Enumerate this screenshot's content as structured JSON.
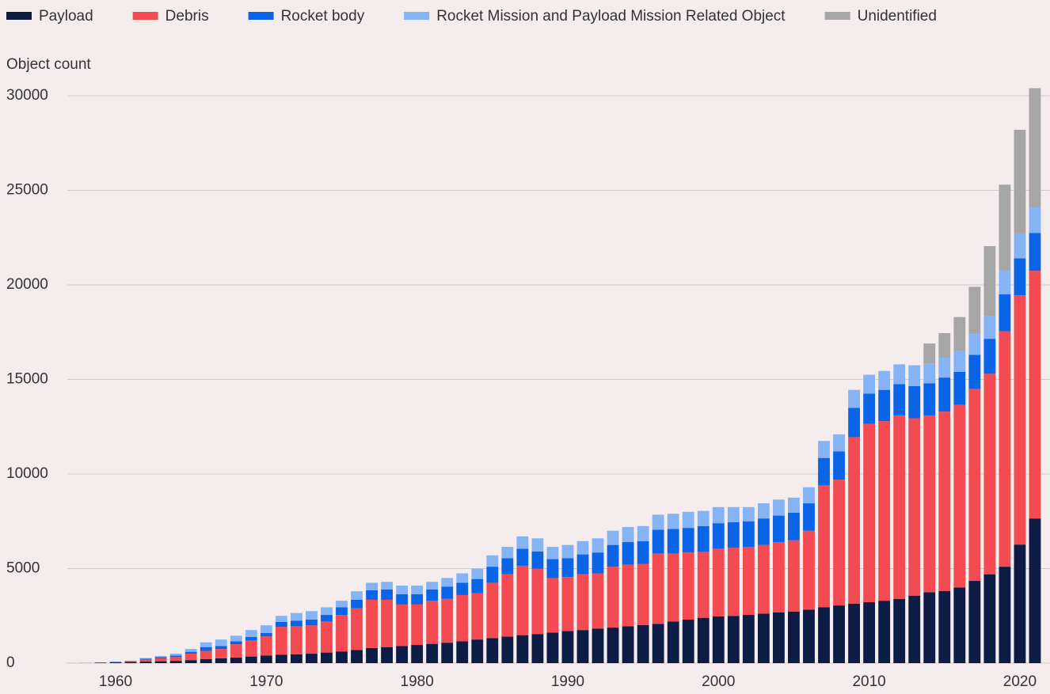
{
  "chart_data": {
    "type": "stacked_bar",
    "y_label": "Object count",
    "x": [
      1957,
      1958,
      1959,
      1960,
      1961,
      1962,
      1963,
      1964,
      1965,
      1966,
      1967,
      1968,
      1969,
      1970,
      1971,
      1972,
      1973,
      1974,
      1975,
      1976,
      1977,
      1978,
      1979,
      1980,
      1981,
      1982,
      1983,
      1984,
      1985,
      1986,
      1987,
      1988,
      1989,
      1990,
      1991,
      1992,
      1993,
      1994,
      1995,
      1996,
      1997,
      1998,
      1999,
      2000,
      2001,
      2002,
      2003,
      2004,
      2005,
      2006,
      2007,
      2008,
      2009,
      2010,
      2011,
      2012,
      2013,
      2014,
      2015,
      2016,
      2017,
      2018,
      2019,
      2020,
      2021
    ],
    "xlim": [
      1956.5,
      2022
    ],
    "xticks": [
      1960,
      1970,
      1980,
      1990,
      2000,
      2010,
      2020
    ],
    "ylim": [
      0,
      30000
    ],
    "yticks": [
      0,
      5000,
      10000,
      15000,
      20000,
      25000,
      30000
    ],
    "grid": true,
    "legend": "top",
    "series": [
      {
        "name": "Payload",
        "color": "#0c1c45",
        "values": [
          2,
          5,
          20,
          40,
          60,
          80,
          100,
          120,
          160,
          220,
          260,
          300,
          350,
          400,
          440,
          470,
          500,
          560,
          620,
          700,
          800,
          850,
          900,
          960,
          1020,
          1080,
          1150,
          1250,
          1320,
          1400,
          1480,
          1540,
          1620,
          1700,
          1750,
          1820,
          1880,
          1950,
          2020,
          2080,
          2200,
          2300,
          2400,
          2470,
          2500,
          2550,
          2620,
          2680,
          2730,
          2830,
          2950,
          3050,
          3150,
          3220,
          3300,
          3400,
          3570,
          3750,
          3820,
          4000,
          4350,
          4700,
          5100,
          6270,
          7650
        ]
      },
      {
        "name": "Debris",
        "color": "#f44a52",
        "values": [
          0,
          0,
          5,
          10,
          30,
          100,
          150,
          200,
          340,
          430,
          490,
          700,
          850,
          1020,
          1480,
          1480,
          1500,
          1640,
          1930,
          2200,
          2550,
          2500,
          2200,
          2140,
          2280,
          2320,
          2450,
          2450,
          2930,
          3300,
          3670,
          3460,
          2880,
          2850,
          2950,
          2930,
          3220,
          3250,
          3230,
          3720,
          3600,
          3550,
          3500,
          3580,
          3600,
          3600,
          3630,
          3720,
          3770,
          4170,
          6450,
          6650,
          8800,
          9430,
          9500,
          9700,
          9380,
          9350,
          9480,
          9650,
          10150,
          10600,
          12450,
          13180,
          13100
        ]
      },
      {
        "name": "Rocket body",
        "color": "#0a64e8",
        "values": [
          1,
          5,
          10,
          20,
          20,
          50,
          70,
          80,
          100,
          200,
          150,
          150,
          180,
          180,
          260,
          300,
          300,
          350,
          400,
          450,
          500,
          550,
          550,
          550,
          600,
          650,
          650,
          750,
          850,
          850,
          900,
          900,
          1000,
          1000,
          1050,
          1100,
          1150,
          1200,
          1200,
          1250,
          1300,
          1300,
          1350,
          1350,
          1350,
          1350,
          1400,
          1400,
          1450,
          1450,
          1450,
          1500,
          1550,
          1600,
          1650,
          1650,
          1700,
          1700,
          1800,
          1750,
          1800,
          1850,
          1950,
          1950,
          2000
        ]
      },
      {
        "name": "Rocket Mission and Payload Mission Related Object",
        "color": "#84b4f6",
        "values": [
          0,
          5,
          10,
          20,
          20,
          40,
          60,
          100,
          150,
          250,
          350,
          300,
          370,
          400,
          320,
          400,
          450,
          400,
          350,
          450,
          400,
          400,
          450,
          450,
          400,
          450,
          500,
          550,
          600,
          600,
          650,
          700,
          650,
          700,
          700,
          750,
          750,
          800,
          800,
          800,
          800,
          850,
          800,
          850,
          800,
          750,
          800,
          850,
          800,
          850,
          900,
          900,
          950,
          1000,
          1000,
          1050,
          1100,
          1050,
          1050,
          1100,
          1100,
          1200,
          1250,
          1300,
          1350
        ]
      },
      {
        "name": "Unidentified",
        "color": "#a6a6a6",
        "values": [
          0,
          0,
          0,
          0,
          0,
          0,
          0,
          0,
          0,
          0,
          0,
          0,
          0,
          0,
          0,
          0,
          0,
          0,
          0,
          0,
          0,
          0,
          0,
          0,
          0,
          0,
          0,
          0,
          0,
          0,
          0,
          0,
          0,
          0,
          0,
          0,
          0,
          0,
          0,
          0,
          0,
          0,
          0,
          0,
          0,
          0,
          0,
          0,
          0,
          0,
          0,
          0,
          0,
          0,
          0,
          0,
          0,
          1050,
          1300,
          1800,
          2500,
          3700,
          4550,
          5500,
          6300
        ]
      }
    ]
  }
}
